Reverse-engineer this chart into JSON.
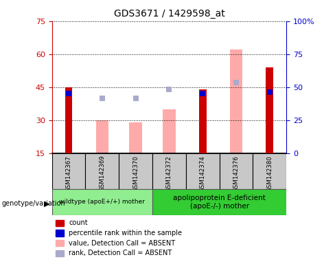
{
  "title": "GDS3671 / 1429598_at",
  "samples": [
    "GSM142367",
    "GSM142369",
    "GSM142370",
    "GSM142372",
    "GSM142374",
    "GSM142376",
    "GSM142380"
  ],
  "count_values": [
    45,
    null,
    null,
    null,
    44,
    null,
    54
  ],
  "count_color": "#cc0000",
  "value_absent_values": [
    null,
    30,
    29,
    35,
    null,
    62,
    null
  ],
  "value_absent_color": "#ffaaaa",
  "rank_absent_values": [
    null,
    40,
    40,
    44,
    null,
    47,
    null
  ],
  "rank_absent_color": "#aaaacc",
  "percentile_values": [
    45,
    null,
    null,
    null,
    45,
    null,
    46
  ],
  "percentile_color": "#0000cc",
  "ylim_left": [
    15,
    75
  ],
  "ylim_right": [
    0,
    100
  ],
  "yticks_left": [
    15,
    30,
    45,
    60,
    75
  ],
  "yticks_right": [
    0,
    25,
    50,
    75,
    100
  ],
  "yticklabels_right": [
    "0",
    "25",
    "50",
    "75",
    "100%"
  ],
  "left_axis_color": "#cc0000",
  "right_axis_color": "#0000cc",
  "grid_color": "black",
  "plot_bg": "#ffffff",
  "sample_box_color": "#c8c8c8",
  "group1_label": "wildtype (apoE+/+) mother",
  "group2_label": "apolipoprotein E-deficient\n(apoE-/-) mother",
  "group1_n": 3,
  "group2_n": 4,
  "group1_color": "#90ee90",
  "group2_color": "#33cc33",
  "genotype_label": "genotype/variation",
  "legend_items": [
    {
      "label": "count",
      "color": "#cc0000"
    },
    {
      "label": "percentile rank within the sample",
      "color": "#0000cc"
    },
    {
      "label": "value, Detection Call = ABSENT",
      "color": "#ffaaaa"
    },
    {
      "label": "rank, Detection Call = ABSENT",
      "color": "#aaaacc"
    }
  ],
  "count_bar_width": 0.22,
  "absent_bar_width": 0.38,
  "rank_marker_size": 6
}
